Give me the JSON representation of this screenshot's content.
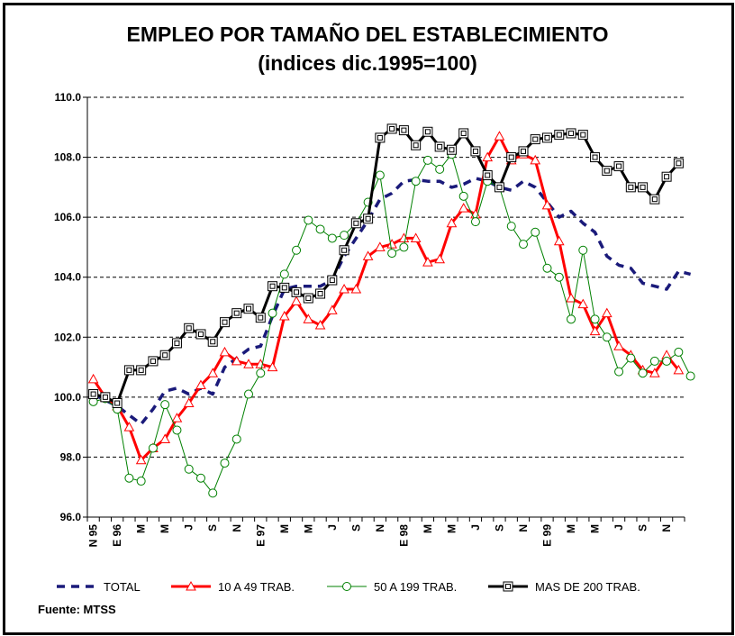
{
  "chart_data": {
    "type": "line",
    "title": "EMPLEO POR TAMAÑO DEL ESTABLECIMIENTO",
    "subtitle": "(indices dic.1995=100)",
    "xlabel": "",
    "ylabel": "",
    "ylim": [
      96,
      110
    ],
    "yticks": [
      "96.0",
      "98.0",
      "100.0",
      "102.0",
      "104.0",
      "106.0",
      "108.0",
      "110.0"
    ],
    "x_tick_labels": [
      "N 95",
      "E 96",
      "M",
      "M",
      "J",
      "S",
      "N",
      "E 97",
      "M",
      "M",
      "J",
      "S",
      "N",
      "E 98",
      "M",
      "M",
      "J",
      "S",
      "N",
      "E 99",
      "M",
      "M",
      "J",
      "S",
      "N"
    ],
    "grid": true,
    "legend_position": "bottom",
    "series": [
      {
        "name": "TOTAL",
        "color": "#1a1a7a",
        "style": "dashed",
        "marker": "none",
        "values": [
          100.1,
          99.9,
          99.7,
          99.4,
          99.1,
          99.6,
          100.2,
          100.3,
          100.1,
          100.3,
          100.1,
          101.0,
          101.3,
          101.6,
          101.7,
          102.7,
          103.6,
          103.7,
          103.7,
          103.7,
          103.9,
          104.7,
          105.3,
          105.9,
          106.6,
          106.8,
          107.2,
          107.25,
          107.2,
          107.2,
          107.0,
          107.1,
          107.3,
          107.2,
          107.0,
          106.9,
          107.2,
          107.0,
          106.5,
          106.0,
          106.2,
          105.8,
          105.5,
          104.7,
          104.4,
          104.3,
          103.8,
          103.7,
          103.6,
          104.2,
          104.1
        ]
      },
      {
        "name": "10 A 49 TRAB.",
        "color": "#ff0000",
        "style": "solid",
        "marker": "triangle",
        "values": [
          100.6,
          100.0,
          99.7,
          99.0,
          97.9,
          98.3,
          98.6,
          99.3,
          99.8,
          100.4,
          100.8,
          101.5,
          101.2,
          101.1,
          101.1,
          101.0,
          102.7,
          103.2,
          102.6,
          102.4,
          102.9,
          103.6,
          103.6,
          104.7,
          105.0,
          105.1,
          105.3,
          105.3,
          104.5,
          104.6,
          105.8,
          106.3,
          106.1,
          108.0,
          108.7,
          107.9,
          108.1,
          107.9,
          106.4,
          105.2,
          103.3,
          103.1,
          102.2,
          102.8,
          101.7,
          101.4,
          100.9,
          100.8,
          101.4,
          100.9
        ]
      },
      {
        "name": "50 A 199 TRAB.",
        "color": "#008000",
        "style": "solid",
        "marker": "circle",
        "values": [
          99.85,
          99.95,
          99.6,
          97.3,
          97.2,
          98.3,
          99.75,
          98.9,
          97.6,
          97.3,
          96.8,
          97.8,
          98.6,
          100.1,
          100.8,
          102.8,
          104.1,
          104.9,
          105.9,
          105.6,
          105.3,
          105.4,
          105.8,
          106.5,
          107.4,
          104.8,
          105.0,
          107.2,
          107.9,
          107.6,
          108.1,
          106.7,
          105.85,
          107.2,
          107.0,
          105.7,
          105.1,
          105.5,
          104.3,
          104.0,
          102.6,
          104.9,
          102.6,
          102.0,
          100.85,
          101.3,
          100.8,
          101.2,
          101.2,
          101.5,
          100.7
        ]
      },
      {
        "name": "MAS DE 200 TRAB.",
        "color": "#000000",
        "style": "solid",
        "marker": "square",
        "values": [
          100.1,
          100.0,
          99.8,
          100.9,
          100.9,
          101.2,
          101.4,
          101.8,
          102.3,
          102.1,
          101.85,
          102.5,
          102.8,
          102.95,
          102.65,
          103.7,
          103.65,
          103.5,
          103.3,
          103.45,
          103.9,
          104.9,
          105.8,
          105.95,
          108.65,
          108.95,
          108.9,
          108.4,
          108.85,
          108.35,
          108.25,
          108.8,
          108.2,
          107.4,
          107.0,
          108.0,
          108.2,
          108.6,
          108.65,
          108.75,
          108.8,
          108.75,
          108.0,
          107.55,
          107.7,
          107.0,
          107.0,
          106.6,
          107.35,
          107.8
        ]
      }
    ]
  },
  "source_label": "Fuente: MTSS"
}
